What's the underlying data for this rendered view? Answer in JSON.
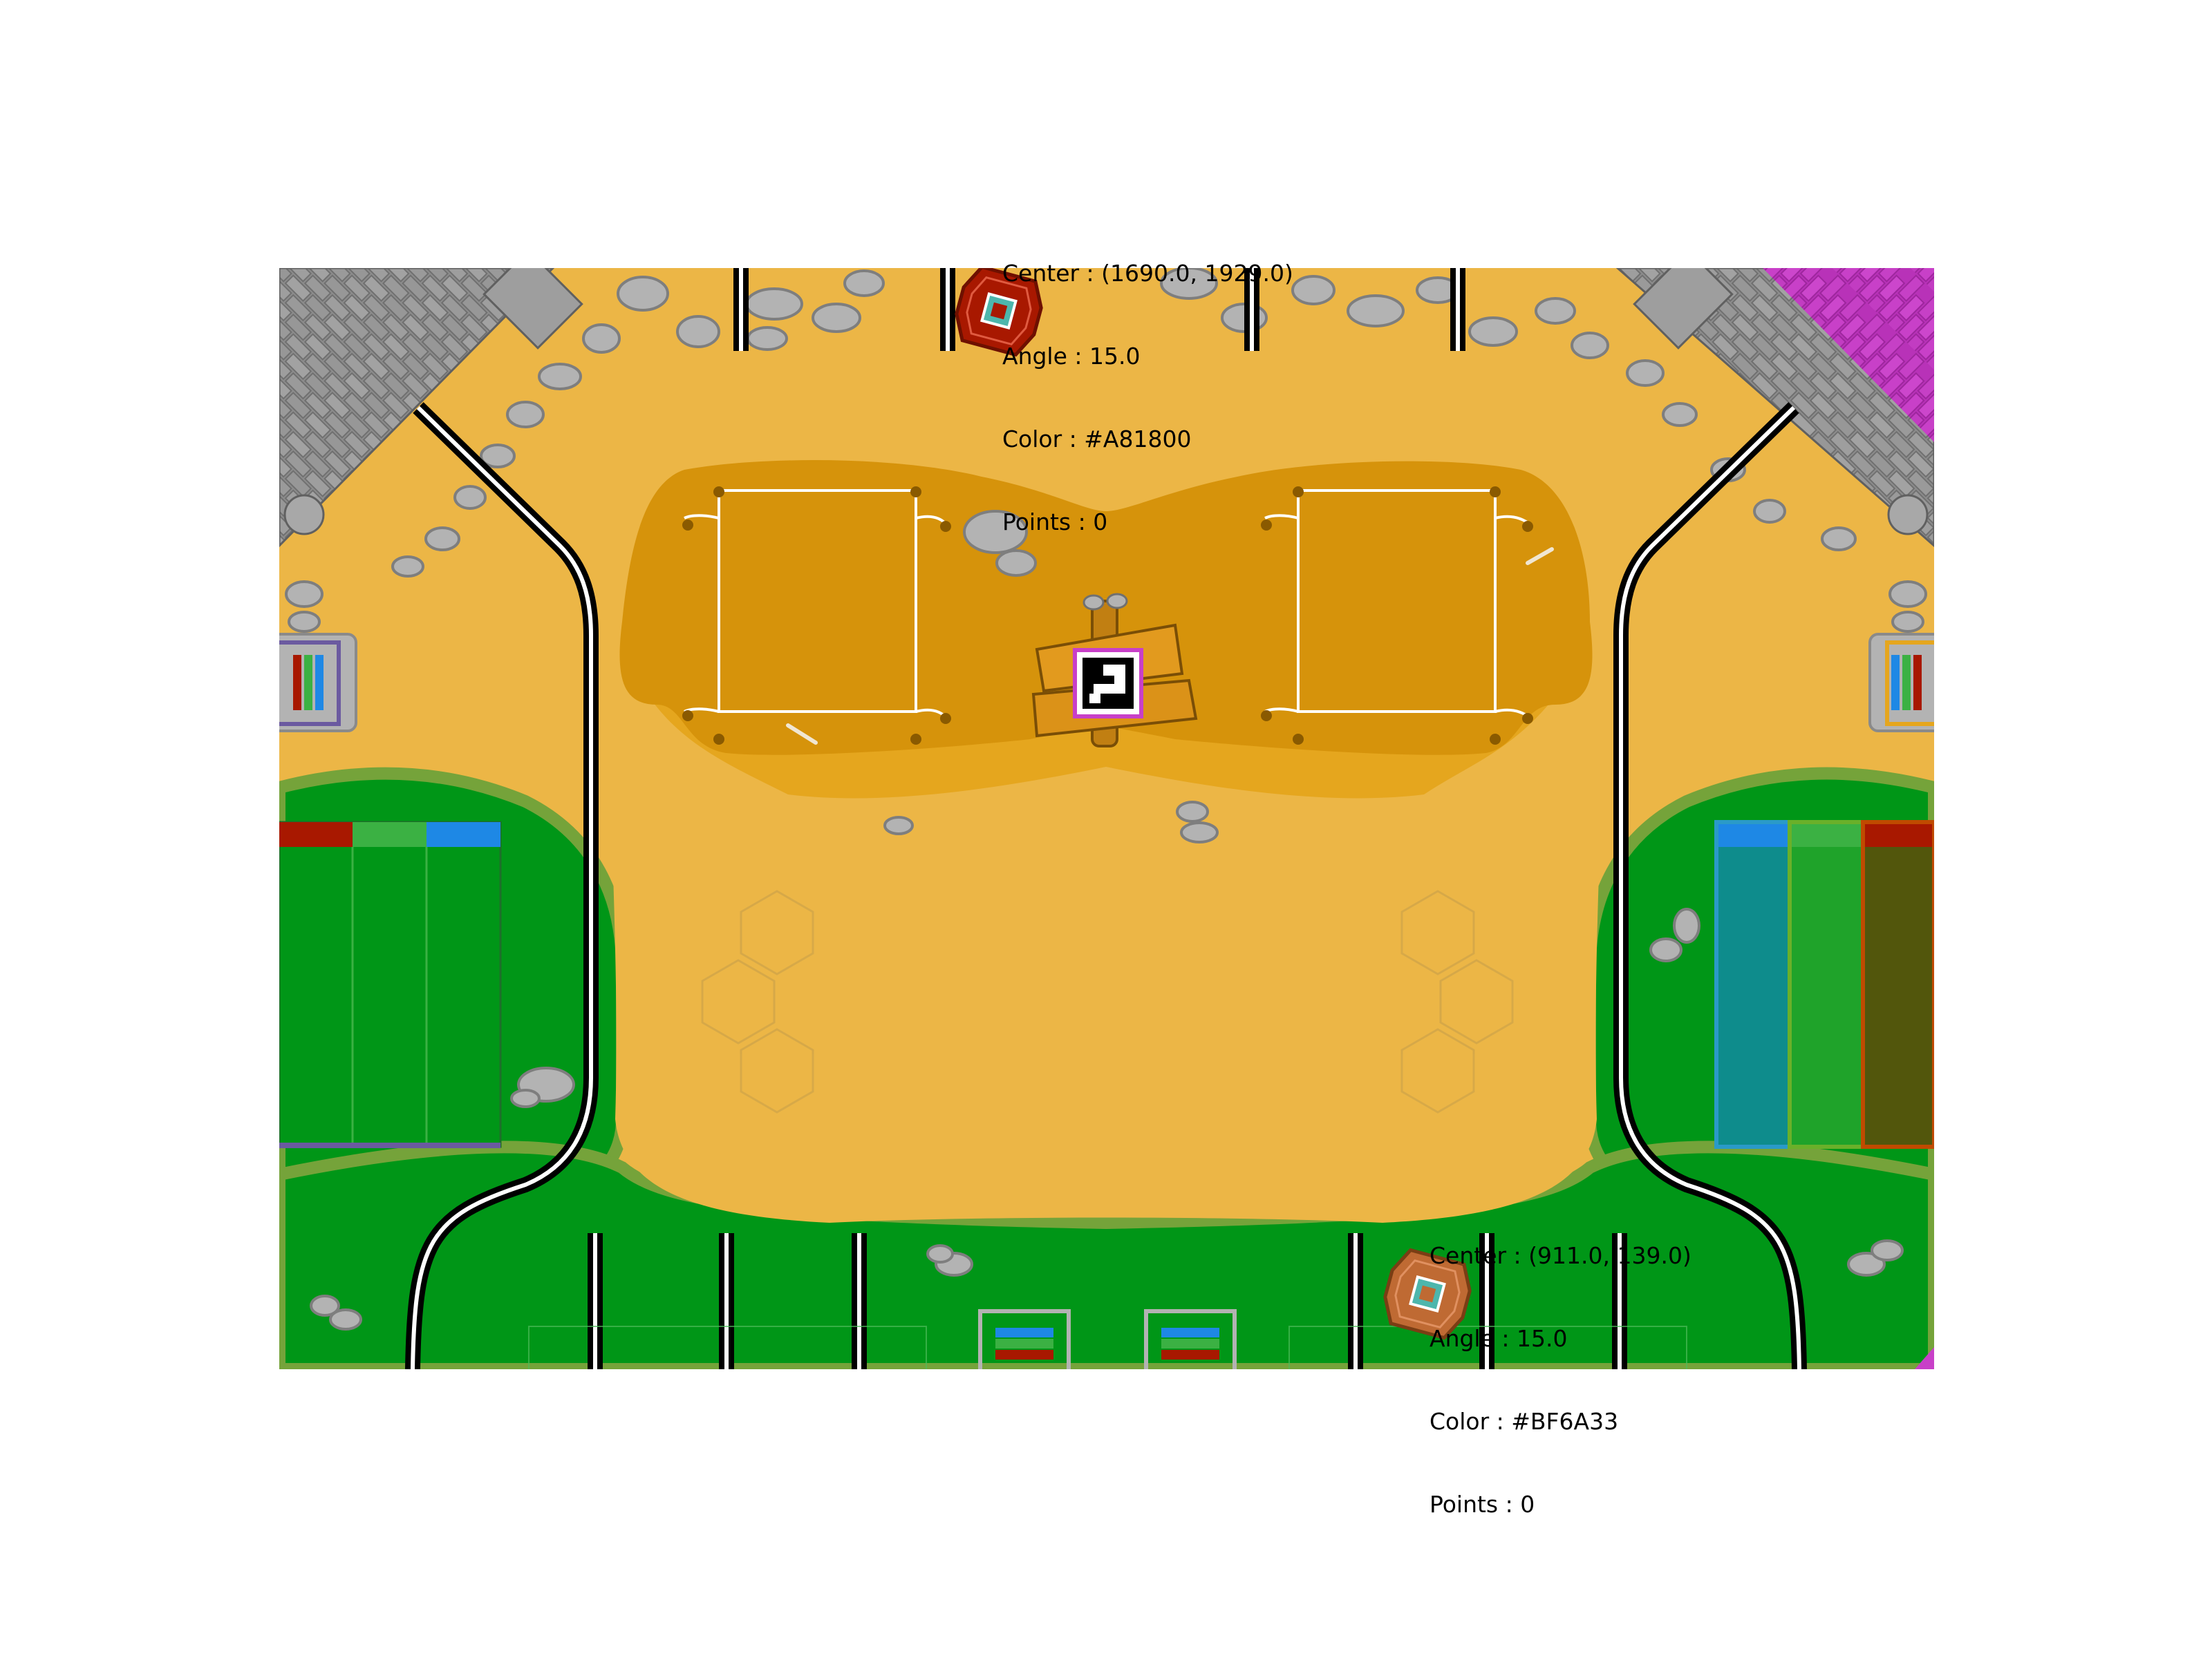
{
  "field": {
    "colors": {
      "sand": "#ECB646",
      "sand_dark": "#D6930B",
      "sand_mid": "#E5A61E",
      "grass": "#009617",
      "grass_edge": "#75A33A",
      "stone": "#B3B3B3",
      "stone_dark": "#7E7E7E",
      "wall": "#8C8C8C",
      "magenta": "#C840C8",
      "line_black": "#000000",
      "line_white": "#FFFFFF",
      "zone_red": "#A81800",
      "zone_green": "#3BB143",
      "zone_blue": "#1E88E5"
    }
  },
  "robots": [
    {
      "name": "robot-top",
      "color": "#A81800",
      "info": {
        "center": "Center : (1690.0, 1929.0)",
        "angle": "Angle : 15.0",
        "color": "Color : #A81800",
        "points": "Points : 0"
      }
    },
    {
      "name": "robot-bottom",
      "color": "#BF6A33",
      "info": {
        "center": "Center : (911.0, 139.0)",
        "angle": "Angle : 15.0",
        "color": "Color : #BF6A33",
        "points": "Points : 0"
      }
    }
  ],
  "icons": {
    "marker": "aruco-marker-icon",
    "robot": "robot-icon",
    "bone": "bone-icon",
    "rock": "rock-icon"
  }
}
